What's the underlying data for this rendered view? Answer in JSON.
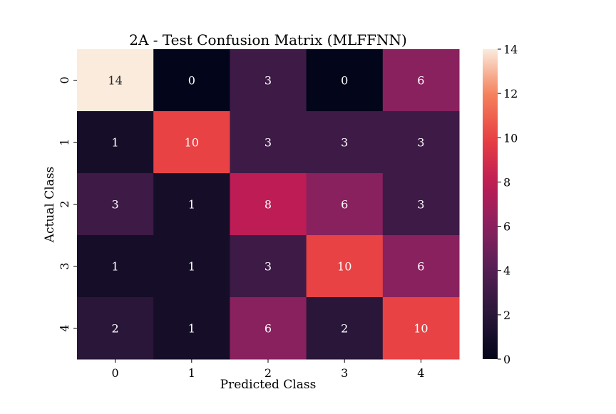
{
  "chart_data": {
    "type": "heatmap",
    "title": "2A - Test Confusion Matrix (MLFFNN)",
    "xlabel": "Predicted Class",
    "ylabel": "Actual Class",
    "x_categories": [
      "0",
      "1",
      "2",
      "3",
      "4"
    ],
    "y_categories": [
      "0",
      "1",
      "2",
      "3",
      "4"
    ],
    "values": [
      [
        14,
        0,
        3,
        0,
        6
      ],
      [
        1,
        10,
        3,
        3,
        3
      ],
      [
        3,
        1,
        8,
        6,
        3
      ],
      [
        1,
        1,
        3,
        10,
        6
      ],
      [
        2,
        1,
        6,
        2,
        10
      ]
    ],
    "colorbar": {
      "range": [
        0,
        14
      ],
      "ticks": [
        "0",
        "2",
        "4",
        "6",
        "8",
        "10",
        "12",
        "14"
      ],
      "colormap": "rocket",
      "low_color": "#03051a",
      "high_color": "#faebdd"
    },
    "annotations": true,
    "grid": false
  }
}
